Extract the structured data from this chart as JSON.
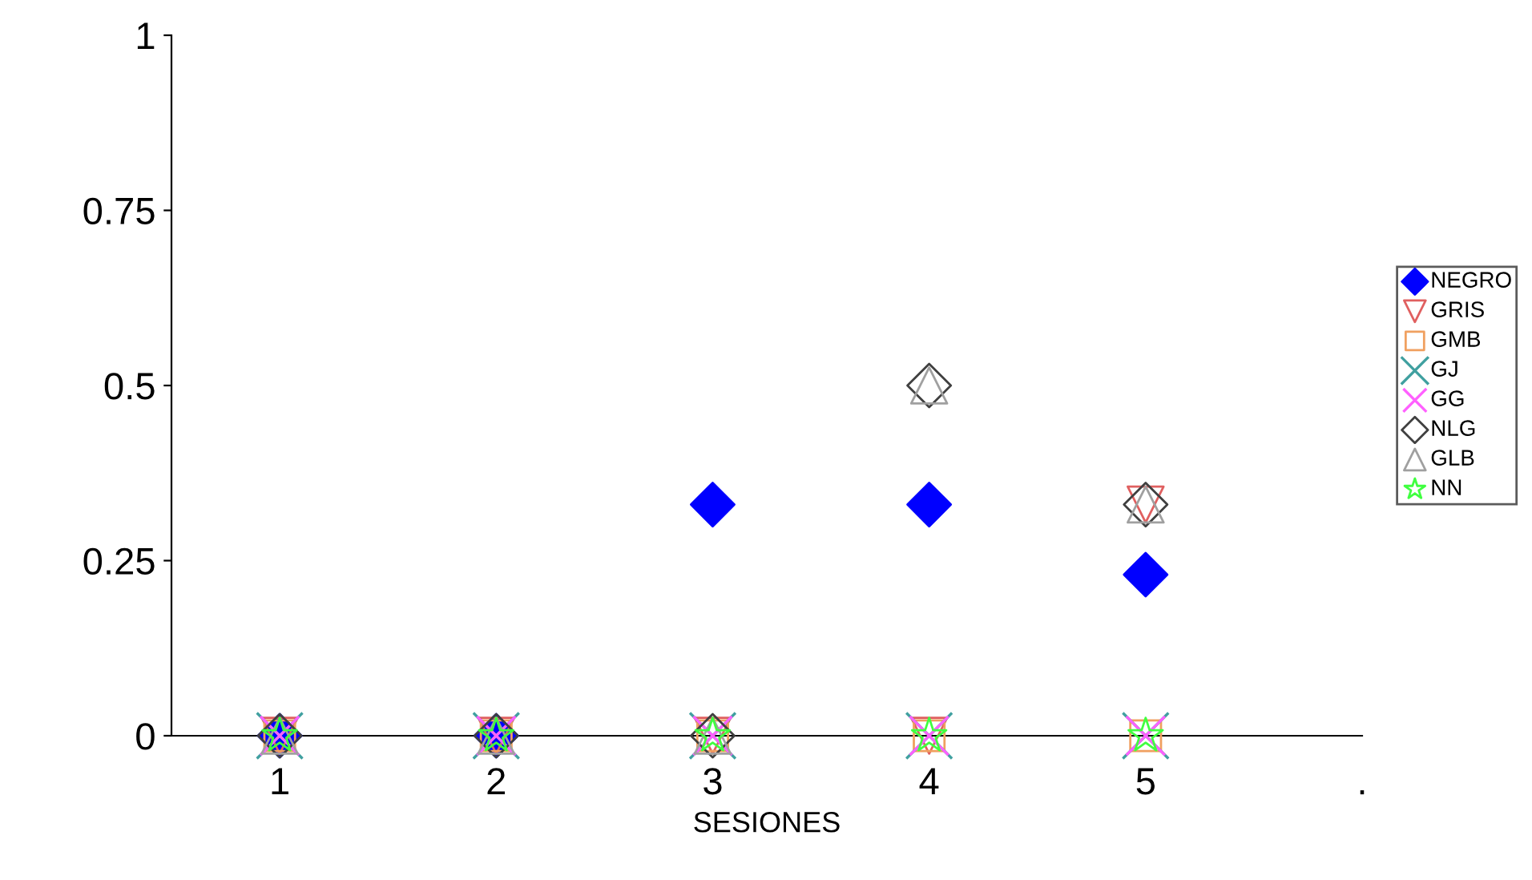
{
  "chart_data": {
    "type": "scatter",
    "xlabel": "SESIONES",
    "categories": [
      "1",
      "2",
      "3",
      "4",
      "5",
      "."
    ],
    "ylim": [
      0,
      1
    ],
    "yticks": [
      0,
      0.25,
      0.5,
      0.75,
      1
    ],
    "grid": false,
    "legend": "right",
    "series": [
      {
        "name": "NEGRO",
        "color": "#0000ff",
        "marker": "diamond",
        "values": [
          0,
          0,
          0.33,
          0.33,
          0.23,
          null
        ]
      },
      {
        "name": "GRIS",
        "color": "#e06060",
        "marker": "triangle_down",
        "values": [
          0,
          0,
          0,
          0,
          0.33,
          null
        ]
      },
      {
        "name": "GMB",
        "color": "#f0a060",
        "marker": "square",
        "values": [
          0,
          0,
          0,
          0,
          0,
          null
        ]
      },
      {
        "name": "GJ",
        "color": "#40a0a0",
        "marker": "cross",
        "values": [
          0,
          0,
          0,
          0,
          0,
          null
        ]
      },
      {
        "name": "GG",
        "color": "#ff60ff",
        "marker": "cross",
        "values": [
          0,
          0,
          0,
          0,
          0,
          null
        ]
      },
      {
        "name": "NLG",
        "color": "#404040",
        "marker": "diamond",
        "values": [
          0,
          0,
          0,
          0.5,
          0.33,
          null
        ]
      },
      {
        "name": "GLB",
        "color": "#a0a0a0",
        "marker": "triangle",
        "values": [
          0,
          0,
          0,
          0.5,
          0.33,
          null
        ]
      },
      {
        "name": "NN",
        "color": "#40ff40",
        "marker": "star",
        "values": [
          0,
          0,
          0,
          0,
          0,
          null
        ]
      }
    ]
  }
}
